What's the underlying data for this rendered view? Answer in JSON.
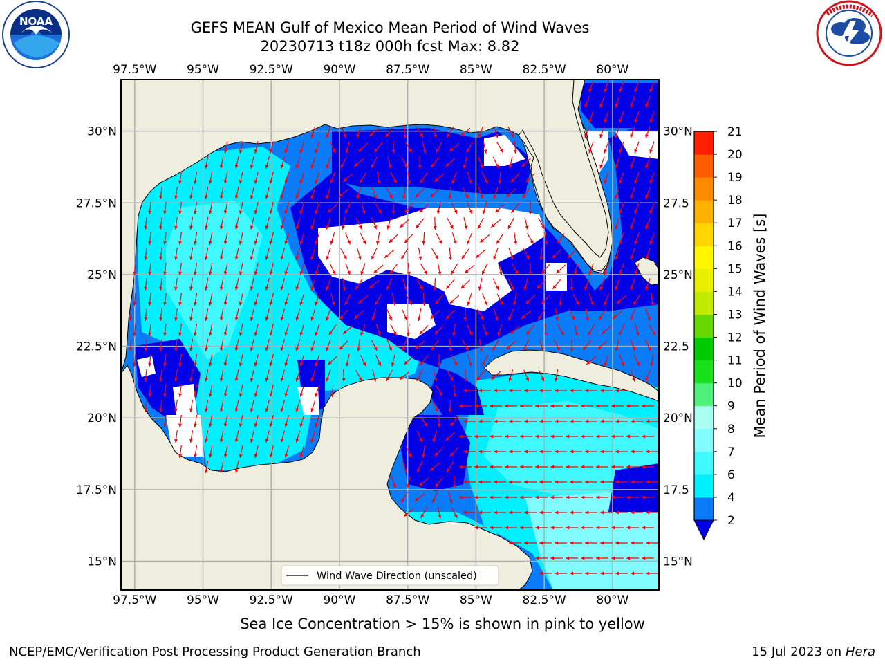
{
  "header": {
    "title_line1": "GEFS MEAN Gulf of Mexico Mean Period of Wind Waves",
    "title_line2": "20230713 t18z 000h fcst   Max: 8.82"
  },
  "logos": {
    "noaa_text": "NOAA",
    "noaa_ring_text": "NATIONAL OCEANIC AND ATMOSPHERIC ADMINISTRATION · U.S. DEPARTMENT OF COMMERCE",
    "nws_ring_text": "NATIONAL WEATHER SERVICE"
  },
  "map": {
    "lon_ticks": [
      "97.5°W",
      "95°W",
      "92.5°W",
      "90°W",
      "87.5°W",
      "85°W",
      "82.5°W",
      "80°W"
    ],
    "lat_ticks_left": [
      "30°N",
      "27.5°N",
      "25°N",
      "22.5°N",
      "20°N",
      "17.5°N",
      "15°N"
    ],
    "lat_ticks_right": [
      "30°N",
      "27.5",
      "25°N",
      "22.5",
      "20°N",
      "17.5",
      "15°N"
    ],
    "legend_label": "Wind Wave Direction (unscaled)",
    "lon_range": [
      -98,
      -78.3
    ],
    "lat_range": [
      14,
      31.8
    ],
    "colors": {
      "land": "#efedde",
      "no_data": "#ffffff",
      "grid": "#b0b0b0",
      "arrow": "#ff0000",
      "coast": "#000000"
    }
  },
  "colorbar": {
    "label": "Mean Period of Wind Waves [s]",
    "levels": [
      "2",
      "4",
      "6",
      "7",
      "8",
      "9",
      "10",
      "11",
      "12",
      "13",
      "14",
      "15",
      "16",
      "17",
      "18",
      "19",
      "20",
      "21"
    ],
    "tick_labels": [
      "2",
      "4",
      "6",
      "7",
      "8",
      "9",
      "10",
      "11",
      "12",
      "13",
      "14",
      "15",
      "16",
      "17",
      "18",
      "19",
      "20",
      "21"
    ],
    "extend_color": "#0000e6",
    "colors": [
      "#0a7cf7",
      "#00f0ff",
      "#40f8ff",
      "#80fbff",
      "#a8fff2",
      "#4cf07a",
      "#18e01a",
      "#00cc00",
      "#66d800",
      "#c0e800",
      "#e8f000",
      "#fff600",
      "#ffd400",
      "#ffb000",
      "#ff8a00",
      "#ff5c00",
      "#ff1f00"
    ]
  },
  "footer": {
    "caption": "Sea Ice Concentration > 15% is shown in pink to yellow",
    "credit": "NCEP/EMC/Verification Post Processing Product Generation Branch",
    "date": "15 Jul 2023 on",
    "host": "Hera"
  }
}
